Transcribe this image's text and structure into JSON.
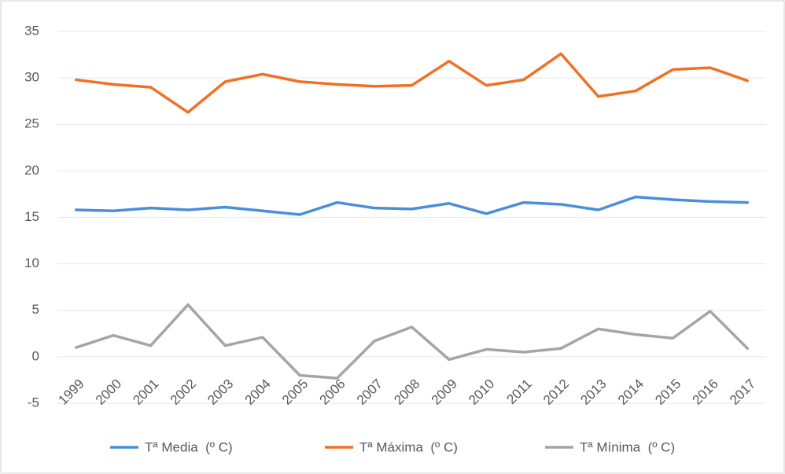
{
  "chart_data": {
    "type": "line",
    "categories": [
      "1999",
      "2000",
      "2001",
      "2002",
      "2003",
      "2004",
      "2005",
      "2006",
      "2007",
      "2008",
      "2009",
      "2010",
      "2011",
      "2012",
      "2013",
      "2014",
      "2015",
      "2016",
      "2017"
    ],
    "series": [
      {
        "name": "Tª Media  (º C)",
        "color": "#4a8fd9",
        "values": [
          15.8,
          15.7,
          16.0,
          15.8,
          16.1,
          15.7,
          15.3,
          16.6,
          16.0,
          15.9,
          16.5,
          15.4,
          16.6,
          16.4,
          15.8,
          17.2,
          16.9,
          16.7,
          16.6
        ]
      },
      {
        "name": "Tª Máxima  (º C)",
        "color": "#f07125",
        "values": [
          29.8,
          29.3,
          29.0,
          26.3,
          29.6,
          30.4,
          29.6,
          29.3,
          29.1,
          29.2,
          31.8,
          29.2,
          29.8,
          32.6,
          28.0,
          28.6,
          30.9,
          31.1,
          29.7
        ]
      },
      {
        "name": "Tª Mínima  (º C)",
        "color": "#a5a5a5",
        "values": [
          1.0,
          2.3,
          1.2,
          5.6,
          1.2,
          2.1,
          -2.0,
          -2.3,
          1.7,
          3.2,
          -0.3,
          0.8,
          0.5,
          0.9,
          3.0,
          2.4,
          2.0,
          4.9,
          0.9
        ]
      }
    ],
    "ylim": [
      -5,
      35
    ],
    "yticks": [
      -5,
      0,
      5,
      10,
      15,
      20,
      25,
      30,
      35
    ],
    "grid": true,
    "legend": "bottom"
  }
}
